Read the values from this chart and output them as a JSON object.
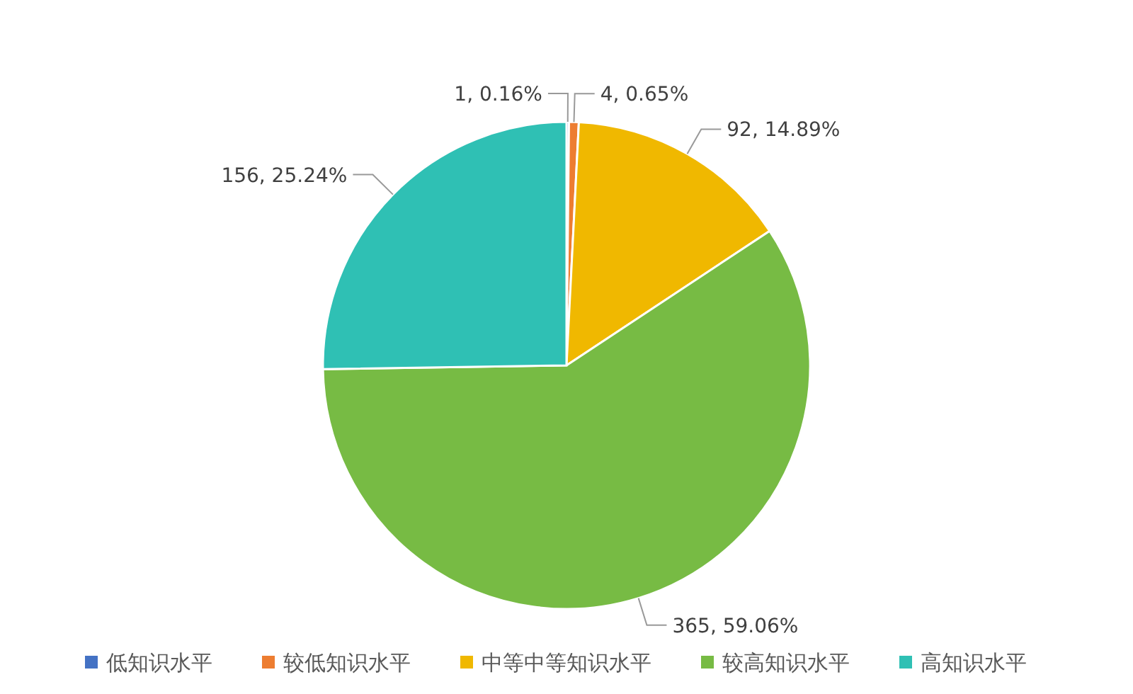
{
  "chart_data": {
    "type": "pie",
    "categories": [
      "低知识水平",
      "较低知识水平",
      "中等中等知识水平",
      "较高知识水平",
      "高知识水平"
    ],
    "values": [
      1,
      4,
      92,
      365,
      156
    ],
    "value_labels": [
      "1, 0.16%",
      "4, 0.65%",
      "92, 14.89%",
      "365, 59.06%",
      "156, 25.24%"
    ],
    "colors": [
      "#4472c4",
      "#ed7d31",
      "#f0b800",
      "#77bb44",
      "#2fc0b4"
    ],
    "legend": "bottom"
  }
}
